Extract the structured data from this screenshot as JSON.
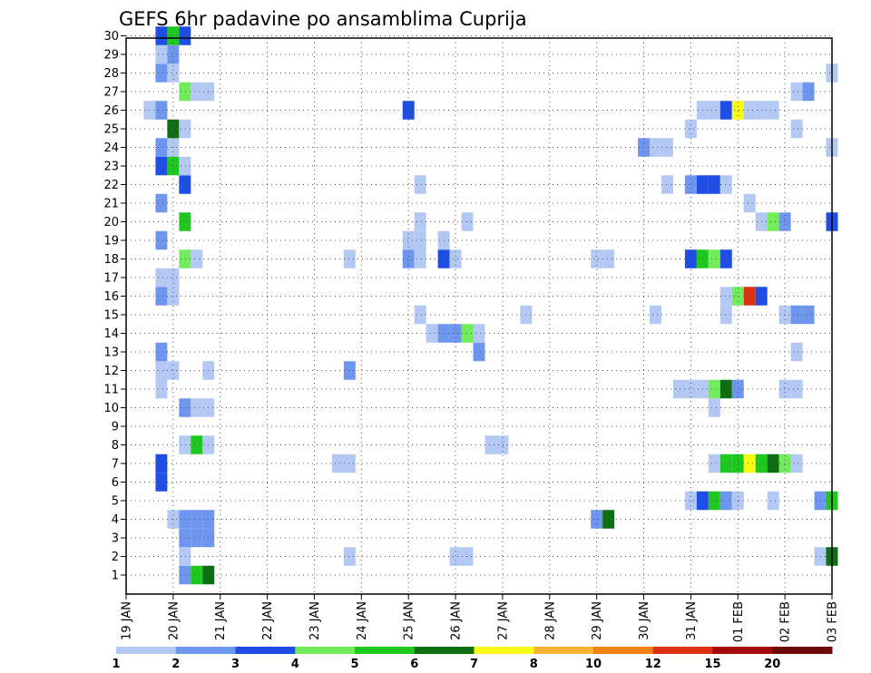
{
  "chart_data": {
    "type": "heatmap",
    "title": "GEFS 6hr padavine po ansamblima Cuprija",
    "xlabel": "",
    "ylabel": "",
    "y_members": [
      1,
      2,
      3,
      4,
      5,
      6,
      7,
      8,
      9,
      10,
      11,
      12,
      13,
      14,
      15,
      16,
      17,
      18,
      19,
      20,
      21,
      22,
      23,
      24,
      25,
      26,
      27,
      28,
      29,
      30
    ],
    "x_dates": [
      "19 JAN",
      "20 JAN",
      "21 JAN",
      "22 JAN",
      "23 JAN",
      "24 JAN",
      "25 JAN",
      "26 JAN",
      "27 JAN",
      "28 JAN",
      "29 JAN",
      "30 JAN",
      "31 JAN",
      "01 FEB",
      "02 FEB",
      "03 FEB"
    ],
    "xlim_days": [
      19,
      34
    ],
    "grid": true,
    "colorbar": {
      "colors": [
        "#b4c8f4",
        "#6e96ee",
        "#1e4ee6",
        "#72ec5a",
        "#1ec81e",
        "#0e6e14",
        "#fafa14",
        "#f6b432",
        "#f08214",
        "#dc3214",
        "#a50a0a",
        "#6e0a0a"
      ],
      "labels": [
        "1",
        "2",
        "3",
        "4",
        "5",
        "6",
        "7",
        "8",
        "10",
        "12",
        "15",
        "20"
      ]
    },
    "cells": [
      [
        1,
        20.25,
        1
      ],
      [
        1,
        20.5,
        4
      ],
      [
        1,
        20.75,
        5
      ],
      [
        2,
        20.25,
        0
      ],
      [
        2,
        23.75,
        0
      ],
      [
        2,
        26,
        0
      ],
      [
        2,
        26.25,
        0
      ],
      [
        2,
        33.75,
        0
      ],
      [
        2,
        34,
        5
      ],
      [
        3,
        20.25,
        1
      ],
      [
        3,
        20.5,
        1
      ],
      [
        3,
        20.75,
        1
      ],
      [
        4,
        20,
        0
      ],
      [
        4,
        20.25,
        1
      ],
      [
        4,
        20.5,
        1
      ],
      [
        4,
        20.75,
        1
      ],
      [
        4,
        29,
        1
      ],
      [
        4,
        29.25,
        5
      ],
      [
        5,
        31,
        0
      ],
      [
        5,
        31.25,
        2
      ],
      [
        5,
        31.5,
        4
      ],
      [
        5,
        31.75,
        1
      ],
      [
        5,
        32,
        0
      ],
      [
        5,
        32.75,
        0
      ],
      [
        5,
        33.75,
        1
      ],
      [
        5,
        34,
        4
      ],
      [
        6,
        19.75,
        2
      ],
      [
        7,
        19.75,
        2
      ],
      [
        7,
        23.5,
        0
      ],
      [
        7,
        23.75,
        0
      ],
      [
        7,
        31.5,
        0
      ],
      [
        7,
        31.75,
        4
      ],
      [
        7,
        32,
        4
      ],
      [
        7,
        32.25,
        6
      ],
      [
        7,
        32.5,
        4
      ],
      [
        7,
        32.75,
        5
      ],
      [
        7,
        33,
        3
      ],
      [
        7,
        33.25,
        0
      ],
      [
        8,
        20.25,
        0
      ],
      [
        8,
        20.5,
        4
      ],
      [
        8,
        20.75,
        0
      ],
      [
        8,
        26.75,
        0
      ],
      [
        8,
        27,
        0
      ],
      [
        10,
        20.25,
        1
      ],
      [
        10,
        20.5,
        0
      ],
      [
        10,
        20.75,
        0
      ],
      [
        10,
        31.5,
        0
      ],
      [
        11,
        19.75,
        0
      ],
      [
        11,
        30.75,
        0
      ],
      [
        11,
        31,
        0
      ],
      [
        11,
        31.25,
        0
      ],
      [
        11,
        31.5,
        3
      ],
      [
        11,
        31.75,
        5
      ],
      [
        11,
        32,
        1
      ],
      [
        11,
        33,
        0
      ],
      [
        11,
        33.25,
        0
      ],
      [
        12,
        19.75,
        0
      ],
      [
        12,
        20,
        0
      ],
      [
        12,
        20.75,
        0
      ],
      [
        12,
        23.75,
        1
      ],
      [
        13,
        19.75,
        1
      ],
      [
        13,
        26.5,
        1
      ],
      [
        13,
        33.25,
        0
      ],
      [
        14,
        25.5,
        0
      ],
      [
        14,
        25.75,
        1
      ],
      [
        14,
        26,
        1
      ],
      [
        14,
        26.25,
        3
      ],
      [
        14,
        26.5,
        0
      ],
      [
        15,
        25.25,
        0
      ],
      [
        15,
        27.5,
        0
      ],
      [
        15,
        30.25,
        0
      ],
      [
        15,
        31.75,
        0
      ],
      [
        15,
        33,
        0
      ],
      [
        15,
        33.25,
        1
      ],
      [
        15,
        33.5,
        1
      ],
      [
        16,
        19.75,
        1
      ],
      [
        16,
        20,
        0
      ],
      [
        16,
        31.75,
        0
      ],
      [
        16,
        32,
        3
      ],
      [
        16,
        32.25,
        9
      ],
      [
        16,
        32.5,
        2
      ],
      [
        17,
        19.75,
        0
      ],
      [
        17,
        20,
        0
      ],
      [
        18,
        20.25,
        3
      ],
      [
        18,
        20.5,
        0
      ],
      [
        18,
        23.75,
        0
      ],
      [
        18,
        25,
        1
      ],
      [
        18,
        25.25,
        0
      ],
      [
        18,
        25.75,
        2
      ],
      [
        18,
        26,
        0
      ],
      [
        18,
        29,
        0
      ],
      [
        18,
        29.25,
        0
      ],
      [
        18,
        31,
        2
      ],
      [
        18,
        31.25,
        4
      ],
      [
        18,
        31.5,
        3
      ],
      [
        18,
        31.75,
        2
      ],
      [
        19,
        19.75,
        1
      ],
      [
        19,
        25,
        0
      ],
      [
        19,
        25.25,
        0
      ],
      [
        19,
        25.75,
        0
      ],
      [
        20,
        20.25,
        4
      ],
      [
        20,
        25.25,
        0
      ],
      [
        20,
        26.25,
        0
      ],
      [
        20,
        32.5,
        0
      ],
      [
        20,
        32.75,
        3
      ],
      [
        20,
        33,
        1
      ],
      [
        20,
        34,
        2
      ],
      [
        21,
        19.75,
        1
      ],
      [
        21,
        32.25,
        0
      ],
      [
        22,
        20.25,
        2
      ],
      [
        22,
        25.25,
        0
      ],
      [
        22,
        30.5,
        0
      ],
      [
        22,
        31,
        1
      ],
      [
        22,
        31.25,
        2
      ],
      [
        22,
        31.5,
        2
      ],
      [
        22,
        31.75,
        0
      ],
      [
        23,
        19.75,
        2
      ],
      [
        23,
        20,
        4
      ],
      [
        23,
        20.25,
        0
      ],
      [
        24,
        19.75,
        1
      ],
      [
        24,
        20,
        0
      ],
      [
        24,
        30,
        1
      ],
      [
        24,
        30.25,
        0
      ],
      [
        24,
        30.5,
        0
      ],
      [
        24,
        34,
        0
      ],
      [
        25,
        20,
        5
      ],
      [
        25,
        20.25,
        0
      ],
      [
        25,
        31,
        0
      ],
      [
        25,
        33.25,
        0
      ],
      [
        26,
        19.5,
        0
      ],
      [
        26,
        19.75,
        1
      ],
      [
        26,
        25,
        2
      ],
      [
        26,
        31.25,
        0
      ],
      [
        26,
        31.5,
        0
      ],
      [
        26,
        31.75,
        2
      ],
      [
        26,
        32,
        6
      ],
      [
        26,
        32.25,
        0
      ],
      [
        26,
        32.5,
        0
      ],
      [
        26,
        32.75,
        0
      ],
      [
        27,
        20.25,
        3
      ],
      [
        27,
        20.5,
        0
      ],
      [
        27,
        20.75,
        0
      ],
      [
        27,
        33.25,
        0
      ],
      [
        27,
        33.5,
        1
      ],
      [
        28,
        19.75,
        1
      ],
      [
        28,
        20,
        0
      ],
      [
        28,
        34,
        0
      ],
      [
        29,
        19.75,
        0
      ],
      [
        29,
        20,
        1
      ],
      [
        30,
        19.75,
        2
      ],
      [
        30,
        20,
        4
      ],
      [
        30,
        20.25,
        2
      ]
    ]
  }
}
